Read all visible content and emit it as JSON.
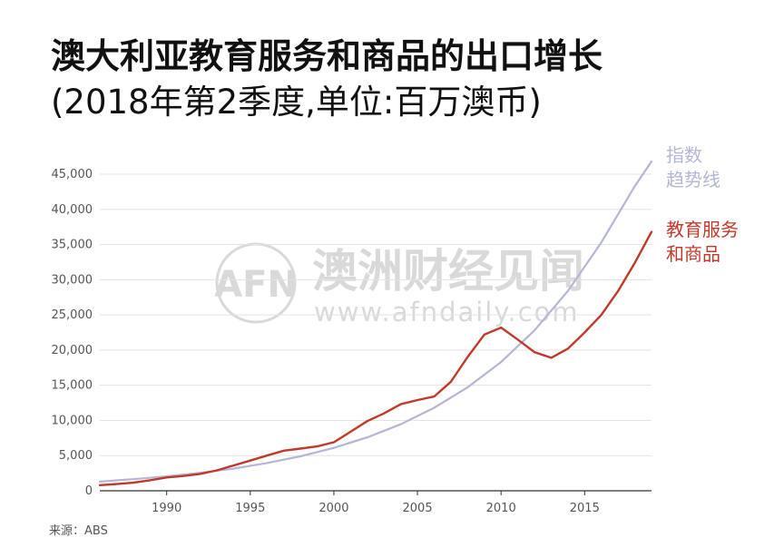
{
  "title": "澳大利亚教育服务和商品的出口增长",
  "subtitle": "(2018年第2季度,单位:百万澳币)",
  "source": "来源：ABS",
  "watermark": {
    "logo_text": "AFN",
    "name": "澳洲财经见闻",
    "url": "www.afndaily.com"
  },
  "colors": {
    "series_edu": "#c0392b",
    "series_trend": "#b4b6d6",
    "grid": "#e3e3e3",
    "axis_text": "#555555",
    "watermark": "#d9d9d9"
  },
  "chart_data": {
    "type": "line",
    "title": "澳大利亚教育服务和商品的出口增长",
    "subtitle": "(2018年第2季度,单位:百万澳币)",
    "xlabel": "",
    "ylabel": "",
    "xlim": [
      1986,
      2019
    ],
    "ylim": [
      0,
      45000
    ],
    "x_ticks": [
      1990,
      1995,
      2000,
      2005,
      2010,
      2015
    ],
    "y_ticks": [
      0,
      5000,
      10000,
      15000,
      20000,
      25000,
      30000,
      35000,
      40000,
      45000
    ],
    "y_tick_labels": [
      "0",
      "5,000",
      "10,000",
      "15,000",
      "20,000",
      "25,000",
      "30,000",
      "35,000",
      "40,000",
      "45,000"
    ],
    "grid": true,
    "legend_placement": "right, at line ends",
    "series": [
      {
        "name": "指数\n趋势线",
        "label_lines": [
          "指数",
          "趋势线"
        ],
        "color": "#b4b6d6",
        "x": [
          1986,
          1988,
          1990,
          1992,
          1994,
          1996,
          1998,
          2000,
          2002,
          2004,
          2006,
          2008,
          2010,
          2012,
          2014,
          2016,
          2018,
          2019
        ],
        "values": [
          1300,
          1650,
          2050,
          2550,
          3150,
          3950,
          4900,
          6100,
          7600,
          9450,
          11800,
          14700,
          18300,
          22800,
          28400,
          35300,
          43300,
          46800
        ]
      },
      {
        "name": "教育服务\n和商品",
        "label_lines": [
          "教育服务",
          "和商品"
        ],
        "color": "#c0392b",
        "x": [
          1986,
          1987,
          1988,
          1989,
          1990,
          1991,
          1992,
          1993,
          1994,
          1995,
          1996,
          1997,
          1998,
          1999,
          2000,
          2001,
          2002,
          2003,
          2004,
          2005,
          2006,
          2007,
          2008,
          2009,
          2010,
          2011,
          2012,
          2013,
          2014,
          2015,
          2016,
          2017,
          2018,
          2019
        ],
        "values": [
          800,
          950,
          1150,
          1500,
          1900,
          2100,
          2400,
          2900,
          3600,
          4300,
          5000,
          5700,
          6000,
          6300,
          6900,
          8400,
          9900,
          11000,
          12300,
          12900,
          13400,
          15500,
          19000,
          22200,
          23200,
          21500,
          19700,
          18900,
          20200,
          22500,
          25000,
          28400,
          32400,
          36800
        ]
      }
    ]
  }
}
